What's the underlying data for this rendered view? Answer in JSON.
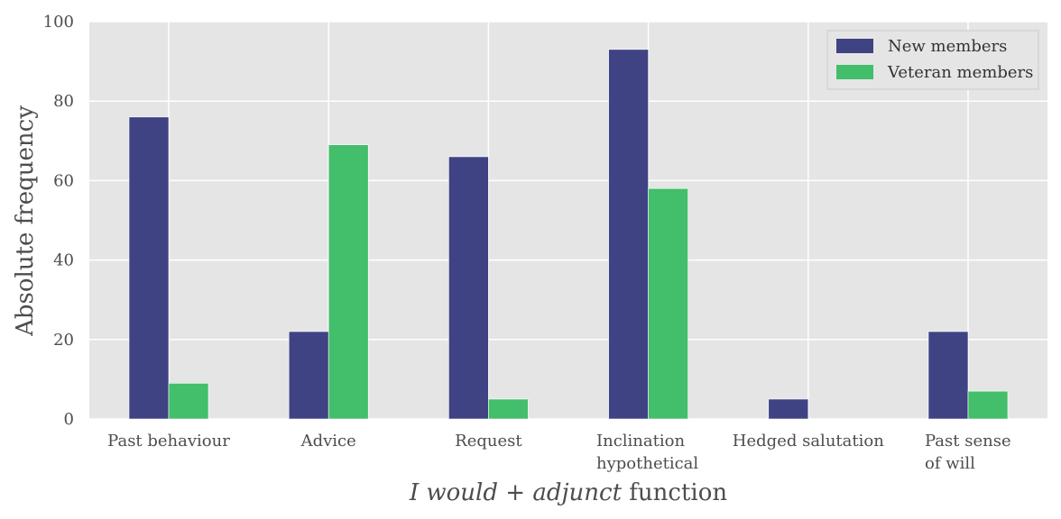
{
  "chart_data": {
    "type": "bar",
    "categories": [
      [
        "Past behaviour"
      ],
      [
        "Advice"
      ],
      [
        "Request"
      ],
      [
        "Inclination",
        "hypothetical"
      ],
      [
        "Hedged salutation"
      ],
      [
        "Past sense",
        "of will"
      ]
    ],
    "series": [
      {
        "name": "New members",
        "color": "#3f4283",
        "values": [
          76,
          22,
          66,
          93,
          5,
          22
        ]
      },
      {
        "name": "Veteran members",
        "color": "#43be6b",
        "values": [
          9,
          69,
          5,
          58,
          0,
          7
        ]
      }
    ],
    "title": "",
    "xlabel": {
      "italic": "I would + adjunct",
      "plain": " function"
    },
    "ylabel": "Absolute frequency",
    "ylim": [
      0,
      100
    ],
    "yticks": [
      "0",
      "20",
      "40",
      "60",
      "80",
      "100"
    ],
    "grid": true,
    "background": "#e5e5e5",
    "legend_position": "top-right"
  }
}
